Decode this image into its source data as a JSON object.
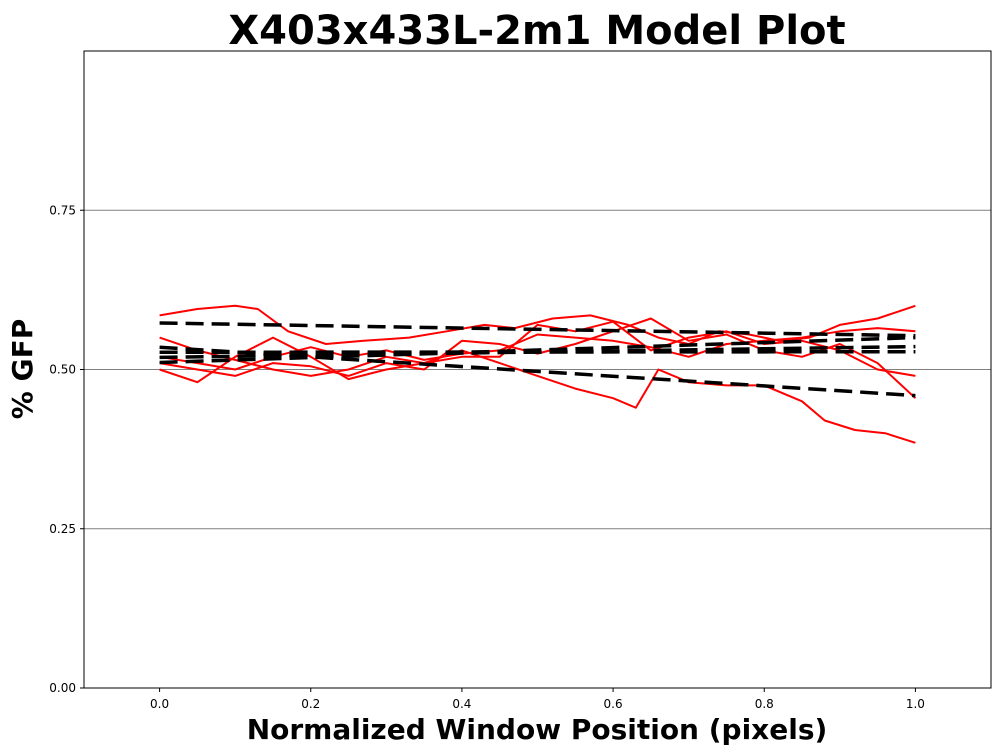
{
  "chart_data": {
    "type": "line",
    "title": "X403x433L-2m1 Model Plot",
    "xlabel": "Normalized Window Position (pixels)",
    "ylabel": "% GFP",
    "xlim": [
      -0.1,
      1.1
    ],
    "ylim": [
      0.0,
      1.0
    ],
    "xticks": [
      "0.0",
      "0.2",
      "0.4",
      "0.6",
      "0.8",
      "1.0"
    ],
    "yticks": [
      "0.00",
      "0.25",
      "0.50",
      "0.75"
    ],
    "grid": "horizontal at y ticks",
    "legend": "none",
    "series": [
      {
        "style": "solid",
        "color": "#ff0000",
        "x": [
          0.0,
          0.05,
          0.1,
          0.13,
          0.17,
          0.22,
          0.27,
          0.33,
          0.38,
          0.43,
          0.47,
          0.52,
          0.57,
          0.62,
          0.66,
          0.7,
          0.74,
          0.78,
          0.82,
          0.86,
          0.9,
          0.95,
          1.0
        ],
        "y": [
          0.585,
          0.595,
          0.6,
          0.595,
          0.56,
          0.54,
          0.545,
          0.55,
          0.56,
          0.57,
          0.565,
          0.58,
          0.585,
          0.57,
          0.55,
          0.54,
          0.56,
          0.555,
          0.545,
          0.55,
          0.57,
          0.58,
          0.6
        ]
      },
      {
        "style": "solid",
        "color": "#ff0000",
        "x": [
          0.0,
          0.05,
          0.1,
          0.15,
          0.2,
          0.25,
          0.3,
          0.35,
          0.4,
          0.45,
          0.5,
          0.55,
          0.6,
          0.63,
          0.66,
          0.7,
          0.75,
          0.8,
          0.85,
          0.88,
          0.92,
          0.96,
          1.0
        ],
        "y": [
          0.55,
          0.53,
          0.515,
          0.5,
          0.49,
          0.5,
          0.52,
          0.51,
          0.53,
          0.51,
          0.49,
          0.47,
          0.455,
          0.44,
          0.5,
          0.48,
          0.475,
          0.475,
          0.45,
          0.42,
          0.405,
          0.4,
          0.385
        ]
      },
      {
        "style": "solid",
        "color": "#ff0000",
        "x": [
          0.0,
          0.05,
          0.1,
          0.15,
          0.2,
          0.25,
          0.3,
          0.35,
          0.4,
          0.45,
          0.5,
          0.55,
          0.6,
          0.65,
          0.7,
          0.75,
          0.8,
          0.85,
          0.9,
          0.95,
          1.0
        ],
        "y": [
          0.5,
          0.48,
          0.52,
          0.55,
          0.52,
          0.485,
          0.5,
          0.51,
          0.52,
          0.52,
          0.57,
          0.56,
          0.575,
          0.53,
          0.55,
          0.56,
          0.54,
          0.545,
          0.53,
          0.5,
          0.49
        ]
      },
      {
        "style": "solid",
        "color": "#ff0000",
        "x": [
          0.0,
          0.05,
          0.1,
          0.15,
          0.2,
          0.25,
          0.3,
          0.35,
          0.4,
          0.45,
          0.5,
          0.55,
          0.6,
          0.65,
          0.7,
          0.75,
          0.8,
          0.85,
          0.9,
          0.95,
          1.0
        ],
        "y": [
          0.51,
          0.5,
          0.49,
          0.51,
          0.505,
          0.49,
          0.51,
          0.5,
          0.545,
          0.54,
          0.525,
          0.54,
          0.56,
          0.58,
          0.545,
          0.555,
          0.53,
          0.52,
          0.54,
          0.51,
          0.455
        ]
      },
      {
        "style": "solid",
        "color": "#ff0000",
        "x": [
          0.0,
          0.05,
          0.1,
          0.15,
          0.2,
          0.25,
          0.3,
          0.35,
          0.4,
          0.45,
          0.5,
          0.55,
          0.6,
          0.65,
          0.7,
          0.75,
          0.8,
          0.85,
          0.9,
          0.95,
          1.0
        ],
        "y": [
          0.52,
          0.51,
          0.5,
          0.52,
          0.535,
          0.52,
          0.53,
          0.515,
          0.525,
          0.53,
          0.555,
          0.55,
          0.545,
          0.535,
          0.52,
          0.54,
          0.545,
          0.55,
          0.56,
          0.565,
          0.56
        ]
      },
      {
        "style": "dashed",
        "color": "#000000",
        "x": [
          0.0,
          1.0
        ],
        "y": [
          0.573,
          0.553
        ]
      },
      {
        "style": "dashed",
        "color": "#000000",
        "x": [
          0.0,
          1.0
        ],
        "y": [
          0.535,
          0.459
        ]
      },
      {
        "style": "dashed",
        "color": "#000000",
        "x": [
          0.0,
          1.0
        ],
        "y": [
          0.527,
          0.528
        ]
      },
      {
        "style": "dashed",
        "color": "#000000",
        "x": [
          0.0,
          1.0
        ],
        "y": [
          0.519,
          0.536
        ]
      },
      {
        "style": "dashed",
        "color": "#000000",
        "x": [
          0.0,
          1.0
        ],
        "y": [
          0.511,
          0.55
        ]
      }
    ]
  }
}
